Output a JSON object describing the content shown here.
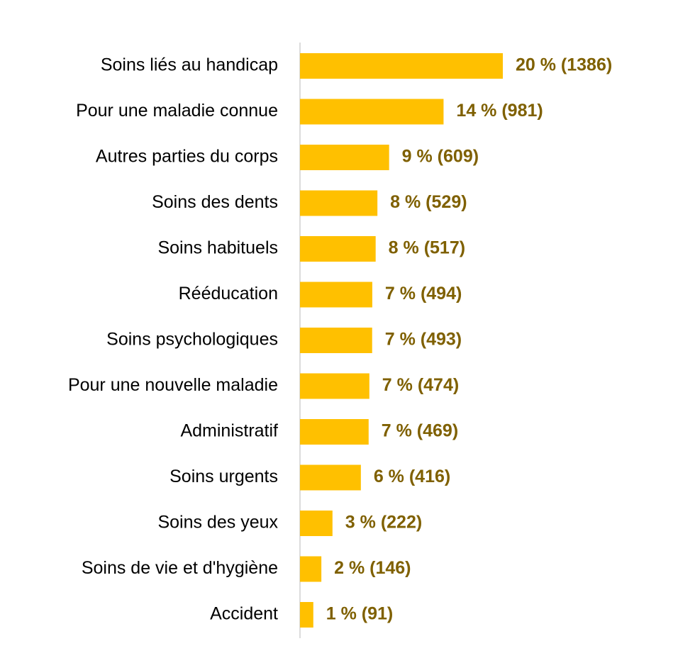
{
  "chart_data": {
    "type": "hbar",
    "categories": [
      "Soins liés au handicap",
      "Pour une maladie connue",
      "Autres parties du corps",
      "Soins des dents",
      "Soins habituels",
      "Rééducation",
      "Soins psychologiques",
      "Pour une nouvelle maladie",
      "Administratif",
      "Soins urgents",
      "Soins des yeux",
      "Soins de vie et d'hygiène",
      "Accident"
    ],
    "values": [
      1386,
      981,
      609,
      529,
      517,
      494,
      493,
      474,
      469,
      416,
      222,
      146,
      91
    ],
    "value_labels": [
      "20 % (1386)",
      "14 % (981)",
      "9 % (609)",
      "8 % (529)",
      "8 % (517)",
      "7 % (494)",
      "7 % (493)",
      "7 % (474)",
      "7 % (469)",
      "6 % (416)",
      "3 % (222)",
      "2 % (146)",
      "1 % (91)"
    ],
    "color": "#ffc000",
    "label_color": "#7f6000"
  }
}
